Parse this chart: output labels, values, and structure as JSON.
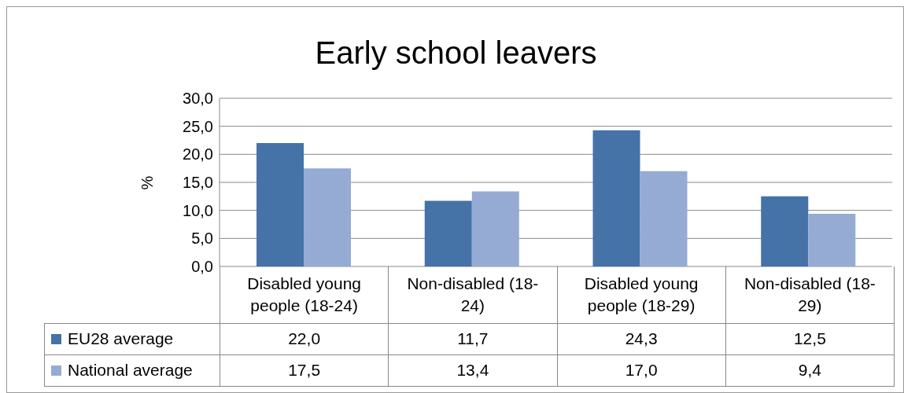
{
  "chart_data": {
    "type": "bar",
    "title": "Early school leavers",
    "ylabel": "%",
    "categories": [
      "Disabled young people (18-24)",
      "Non-disabled (18-24)",
      "Disabled young people (18-29)",
      "Non-disabled (18-29)"
    ],
    "series": [
      {
        "name": "EU28 average",
        "color": "#4572a7",
        "values": [
          22.0,
          11.7,
          24.3,
          12.5
        ],
        "value_labels": [
          "22,0",
          "11,7",
          "24,3",
          "12,5"
        ]
      },
      {
        "name": "National average",
        "color": "#95abd4",
        "values": [
          17.5,
          13.4,
          17.0,
          9.4
        ],
        "value_labels": [
          "17,5",
          "13,4",
          "17,0",
          "9,4"
        ]
      }
    ],
    "ylim": [
      0,
      30
    ],
    "yticks": [
      {
        "value": 0,
        "label": "0,0"
      },
      {
        "value": 5,
        "label": "5,0"
      },
      {
        "value": 10,
        "label": "10,0"
      },
      {
        "value": 15,
        "label": "15,0"
      },
      {
        "value": 20,
        "label": "20,0"
      },
      {
        "value": 25,
        "label": "25,0"
      },
      {
        "value": 30,
        "label": "30,0"
      }
    ],
    "grid": "y",
    "legend": "bottom left"
  }
}
